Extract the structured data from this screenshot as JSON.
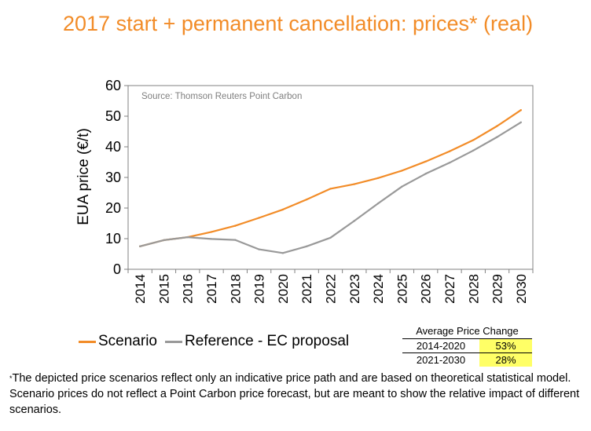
{
  "title": "2017 start + permanent cancellation: prices* (real)",
  "chart_data": {
    "type": "line",
    "x": [
      2014,
      2015,
      2016,
      2017,
      2018,
      2019,
      2020,
      2021,
      2022,
      2023,
      2024,
      2025,
      2026,
      2027,
      2028,
      2029,
      2030
    ],
    "series": [
      {
        "name": "Scenario",
        "color": "#F28C28",
        "values": [
          7.5,
          9.5,
          10.5,
          12.2,
          14.2,
          16.8,
          19.5,
          22.8,
          26.3,
          27.8,
          29.8,
          32.2,
          35.2,
          38.5,
          42.2,
          46.8,
          52.0
        ]
      },
      {
        "name": "Reference - EC proposal",
        "color": "#999999",
        "values": [
          7.5,
          9.5,
          10.5,
          9.9,
          9.6,
          6.5,
          5.3,
          7.5,
          10.3,
          15.8,
          21.5,
          27.0,
          31.2,
          34.8,
          38.8,
          43.2,
          48.0
        ]
      }
    ],
    "ylabel": "EUA price (€/t)",
    "xlabel": "",
    "ylim": [
      0,
      60
    ],
    "yticks": [
      0,
      10,
      20,
      30,
      40,
      50,
      60
    ],
    "grid": false,
    "legend_position": "bottom-left",
    "annotation": "Source: Thomson Reuters Point Carbon"
  },
  "price_change_table": {
    "header": "Average Price Change",
    "rows": [
      {
        "period": "2014-2020",
        "value": "53%"
      },
      {
        "period": "2021-2030",
        "value": "28%"
      }
    ]
  },
  "footnote": {
    "marker": "*",
    "text": "The depicted price scenarios reflect only an indicative price path and are based on theoretical statistical model.  Scenario prices do not reflect a Point Carbon price forecast, but are meant to show the relative impact of different scenarios."
  }
}
